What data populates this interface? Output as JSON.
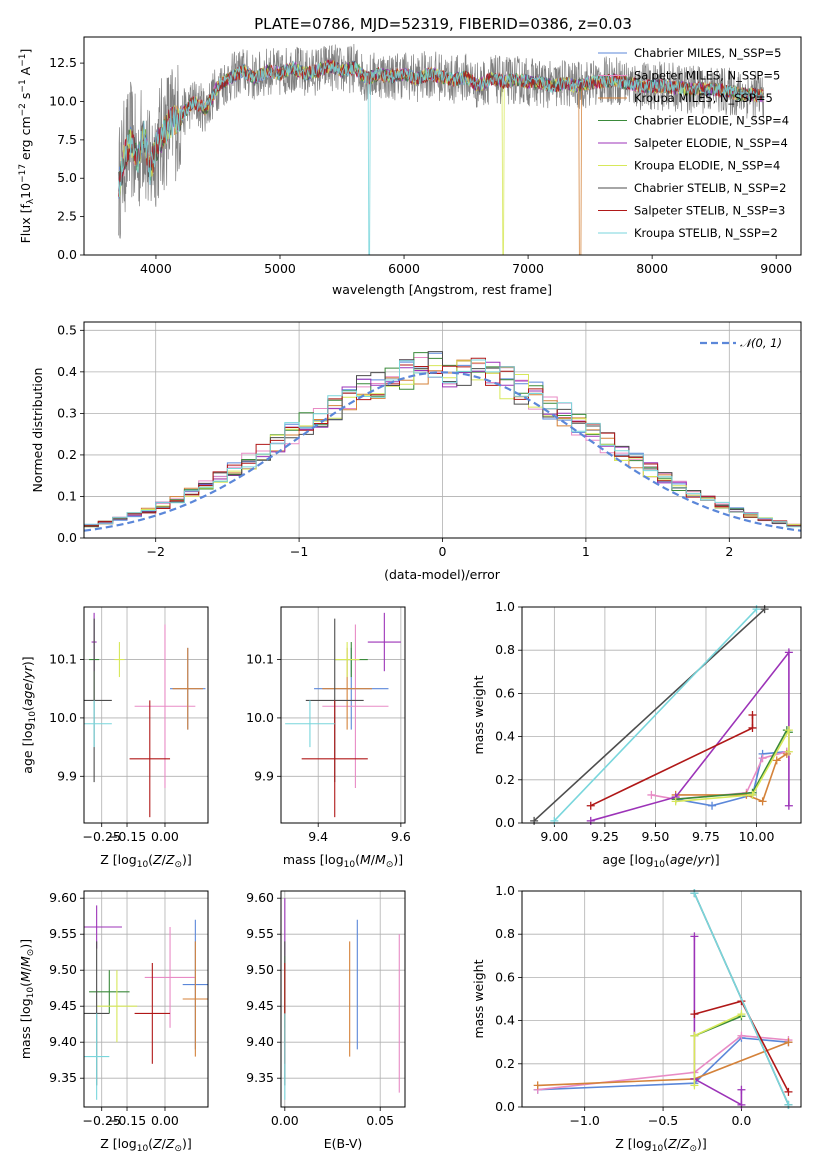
{
  "figure": {
    "title": "PLATE=0786, MJD=52319, FIBERID=0386, z=0.03"
  },
  "colors": [
    "#5b87d9",
    "#e88bc5",
    "#d4823a",
    "#3a8a3a",
    "#9c33b8",
    "#d7e85a",
    "#4d4d4d",
    "#b01818",
    "#79d6dc"
  ],
  "model_names": [
    "Chabrier MILES, N_SSP=5",
    "Salpeter MILES, N_SSP=5",
    "Kroupa MILES, N_SSP=5",
    "Chabrier ELODIE, N_SSP=4",
    "Salpeter ELODIE, N_SSP=4",
    "Kroupa ELODIE, N_SSP=4",
    "Chabrier STELIB, N_SSP=2",
    "Salpeter STELIB, N_SSP=3",
    "Kroupa STELIB, N_SSP=2"
  ],
  "chart_data": [
    {
      "id": "spectrum",
      "type": "line",
      "xlabel": "wavelength [Angstrom, rest frame]",
      "ylabel": "Flux [f_λ 10^-17 erg cm^-2 s^-1 A^-1]",
      "xlim": [
        3420,
        9200
      ],
      "ylim": [
        0,
        14.2
      ],
      "xticks": [
        4000,
        5000,
        6000,
        7000,
        8000,
        9000
      ],
      "yticks": [
        0.0,
        2.5,
        5.0,
        7.5,
        10.0,
        12.5
      ],
      "grid": false,
      "legend": "top-right",
      "observed": {
        "x": [
          3700,
          3750,
          3800,
          3850,
          3900,
          3950,
          4000,
          4100,
          4200,
          4300,
          4400,
          4500,
          4600,
          4700,
          4800,
          4900,
          5000,
          5100,
          5200,
          5300,
          5400,
          5500,
          5600,
          5700,
          5800,
          5900,
          6000,
          6100,
          6200,
          6300,
          6400,
          6500,
          6600,
          6700,
          6800,
          6900,
          7000,
          7100,
          7200,
          7300,
          7400,
          7500,
          7700,
          7900,
          8100,
          8300,
          8500,
          8700,
          8900
        ],
        "y": [
          4.5,
          6.5,
          7.5,
          6.0,
          8.0,
          5.5,
          7.0,
          8.5,
          9.0,
          10.0,
          9.5,
          11.0,
          11.5,
          12.0,
          11.5,
          12.0,
          11.8,
          12.2,
          11.8,
          12.0,
          12.3,
          12.0,
          12.2,
          11.5,
          11.8,
          11.6,
          11.8,
          11.5,
          11.8,
          11.6,
          11.4,
          11.6,
          11.0,
          11.5,
          11.3,
          11.4,
          11.3,
          11.2,
          11.0,
          11.2,
          11.0,
          11.2,
          11.4,
          11.0,
          11.0,
          10.8,
          10.8,
          10.5,
          10.4
        ]
      },
      "series": [
        {
          "name": "Chabrier MILES, N_SSP=5"
        },
        {
          "name": "Salpeter MILES, N_SSP=5"
        },
        {
          "name": "Kroupa MILES, N_SSP=5",
          "dips": [
            7420
          ]
        },
        {
          "name": "Chabrier ELODIE, N_SSP=4"
        },
        {
          "name": "Salpeter ELODIE, N_SSP=4"
        },
        {
          "name": "Kroupa ELODIE, N_SSP=4",
          "dips": [
            6800
          ]
        },
        {
          "name": "Chabrier STELIB, N_SSP=2"
        },
        {
          "name": "Salpeter STELIB, N_SSP=3"
        },
        {
          "name": "Kroupa STELIB, N_SSP=2",
          "dips": [
            5720
          ]
        }
      ]
    },
    {
      "id": "residuals",
      "type": "bar",
      "xlabel": "(data-model)/error",
      "ylabel": "Normed distribution",
      "xlim": [
        -2.5,
        2.5
      ],
      "ylim": [
        0,
        0.52
      ],
      "xticks": [
        -2,
        -1,
        0,
        1,
        2
      ],
      "xtick_labels": [
        "−2",
        "−1",
        "0",
        "1",
        "2"
      ],
      "yticks": [
        0.0,
        0.1,
        0.2,
        0.3,
        0.4,
        0.5
      ],
      "grid": true,
      "legend": "top-right",
      "gaussian_label": "𝒩(0, 1)",
      "bin_width": 0.1,
      "bin_start": -2.5
    },
    {
      "id": "age_vs_Z",
      "type": "scatter",
      "xlabel": "Z [log10(Z/Z⊙)]",
      "ylabel": "age  [log10(age/yr)]",
      "xlim": [
        -0.32,
        0.17
      ],
      "ylim": [
        9.82,
        10.19
      ],
      "xticks": [
        -0.25,
        -0.15,
        0.0
      ],
      "xtick_labels": [
        "−0.25",
        "−0.15",
        "0.00"
      ],
      "yticks": [
        9.9,
        10.0,
        10.1
      ],
      "points": [
        {
          "x": 0.09,
          "y": 10.05,
          "ex": 0.07,
          "ey": 0.07
        },
        {
          "x": 0.0,
          "y": 10.02,
          "ex": 0.12,
          "ey": 0.14
        },
        {
          "x": 0.09,
          "y": 10.05,
          "ex": 0.06,
          "ey": 0.07
        },
        {
          "x": -0.28,
          "y": 10.1,
          "ex": 0.02,
          "ey": 0.07
        },
        {
          "x": -0.28,
          "y": 10.13,
          "ex": 0.01,
          "ey": 0.05
        },
        {
          "x": -0.18,
          "y": 10.1,
          "ex": 0.02,
          "ey": 0.03
        },
        {
          "x": -0.28,
          "y": 10.03,
          "ex": 0.07,
          "ey": 0.14
        },
        {
          "x": -0.06,
          "y": 9.93,
          "ex": 0.08,
          "ey": 0.1
        },
        {
          "x": -0.28,
          "y": 9.99,
          "ex": 0.07,
          "ey": 0.04
        }
      ]
    },
    {
      "id": "age_vs_mass",
      "type": "scatter",
      "xlabel": "mass [log10(M/M⊙)]",
      "ylabel": "",
      "xlim": [
        9.31,
        9.61
      ],
      "ylim": [
        9.82,
        10.19
      ],
      "xticks": [
        9.4,
        9.6
      ],
      "yticks": [
        9.9,
        10.0,
        10.1
      ],
      "points": [
        {
          "x": 9.48,
          "y": 10.05,
          "ex": 0.09,
          "ey": 0.07
        },
        {
          "x": 9.49,
          "y": 10.02,
          "ex": 0.08,
          "ey": 0.14
        },
        {
          "x": 9.47,
          "y": 10.05,
          "ex": 0.06,
          "ey": 0.07
        },
        {
          "x": 9.48,
          "y": 10.1,
          "ex": 0.04,
          "ey": 0.03
        },
        {
          "x": 9.56,
          "y": 10.13,
          "ex": 0.04,
          "ey": 0.05
        },
        {
          "x": 9.47,
          "y": 10.1,
          "ex": 0.03,
          "ey": 0.03
        },
        {
          "x": 9.44,
          "y": 10.03,
          "ex": 0.07,
          "ey": 0.14
        },
        {
          "x": 9.44,
          "y": 9.93,
          "ex": 0.08,
          "ey": 0.1
        },
        {
          "x": 9.38,
          "y": 9.99,
          "ex": 0.06,
          "ey": 0.04
        }
      ]
    },
    {
      "id": "massweight_vs_age",
      "type": "line",
      "xlabel": "age  [log10(age/yr)]",
      "ylabel": "mass weight",
      "xlim": [
        8.84,
        10.22
      ],
      "ylim": [
        0,
        1.0
      ],
      "xticks": [
        9.0,
        9.25,
        9.5,
        9.75,
        10.0
      ],
      "xtick_labels": [
        "9.00",
        "9.25",
        "9.50",
        "9.75",
        "10.00"
      ],
      "yticks": [
        0.0,
        0.2,
        0.4,
        0.6,
        0.8,
        1.0
      ],
      "grid": true,
      "series": [
        {
          "x": [
            9.6,
            9.78,
            9.98,
            10.03,
            10.15
          ],
          "y": [
            0.11,
            0.08,
            0.13,
            0.32,
            0.33
          ]
        },
        {
          "x": [
            9.48,
            9.6,
            9.95,
            10.03,
            10.15
          ],
          "y": [
            0.13,
            0.11,
            0.14,
            0.3,
            0.33
          ]
        },
        {
          "x": [
            9.6,
            9.95,
            10.03,
            10.1,
            10.15
          ],
          "y": [
            0.13,
            0.13,
            0.1,
            0.29,
            0.32
          ]
        },
        {
          "x": [
            9.6,
            9.98,
            10.15,
            10.16
          ],
          "y": [
            0.11,
            0.14,
            0.43,
            0.42
          ]
        },
        {
          "x": [
            9.18,
            9.6,
            10.16,
            10.16
          ],
          "y": [
            0.01,
            0.12,
            0.79,
            0.08
          ]
        },
        {
          "x": [
            9.6,
            9.98,
            10.16,
            10.16
          ],
          "y": [
            0.1,
            0.13,
            0.43,
            0.33
          ]
        },
        {
          "x": [
            8.9,
            10.04
          ],
          "y": [
            0.01,
            0.99
          ]
        },
        {
          "x": [
            9.18,
            9.98,
            9.98
          ],
          "y": [
            0.08,
            0.44,
            0.5
          ]
        },
        {
          "x": [
            9.0,
            10.0
          ],
          "y": [
            0.01,
            0.99
          ]
        }
      ]
    },
    {
      "id": "mass_vs_Z",
      "type": "scatter",
      "xlabel": "Z [log10(Z/Z⊙)]",
      "ylabel": "mass [log10(M/M⊙)]",
      "xlim": [
        -0.32,
        0.17
      ],
      "ylim": [
        9.31,
        9.61
      ],
      "xticks": [
        -0.25,
        -0.15,
        0.0
      ],
      "xtick_labels": [
        "−0.25",
        "−0.15",
        "0.00"
      ],
      "yticks": [
        9.35,
        9.4,
        9.45,
        9.5,
        9.55,
        9.6
      ],
      "points": [
        {
          "x": 0.12,
          "y": 9.48,
          "ex": 0.05,
          "ey": 0.09
        },
        {
          "x": 0.02,
          "y": 9.49,
          "ex": 0.1,
          "ey": 0.07
        },
        {
          "x": 0.12,
          "y": 9.46,
          "ex": 0.05,
          "ey": 0.08
        },
        {
          "x": -0.22,
          "y": 9.47,
          "ex": 0.08,
          "ey": 0.03
        },
        {
          "x": -0.27,
          "y": 9.56,
          "ex": 0.1,
          "ey": 0.03
        },
        {
          "x": -0.19,
          "y": 9.45,
          "ex": 0.08,
          "ey": 0.05
        },
        {
          "x": -0.27,
          "y": 9.44,
          "ex": 0.05,
          "ey": 0.1
        },
        {
          "x": -0.05,
          "y": 9.44,
          "ex": 0.07,
          "ey": 0.07
        },
        {
          "x": -0.27,
          "y": 9.38,
          "ex": 0.05,
          "ey": 0.06
        }
      ]
    },
    {
      "id": "mass_vs_EBV",
      "type": "scatter",
      "xlabel": "E(B-V)",
      "ylabel": "",
      "xlim": [
        -0.002,
        0.063
      ],
      "ylim": [
        9.31,
        9.61
      ],
      "xticks": [
        0.0,
        0.05
      ],
      "xtick_labels": [
        "0.00",
        "0.05"
      ],
      "yticks": [
        9.35,
        9.4,
        9.45,
        9.5,
        9.55,
        9.6
      ],
      "points": [
        {
          "x": 0.038,
          "y": 9.48,
          "ex": 0,
          "ey": 0.09
        },
        {
          "x": 0.06,
          "y": 9.44,
          "ex": 0,
          "ey": 0.11
        },
        {
          "x": 0.034,
          "y": 9.46,
          "ex": 0,
          "ey": 0.08
        },
        {
          "x": 0.0,
          "y": 9.47,
          "ex": 0,
          "ey": 0.05
        },
        {
          "x": 0.0,
          "y": 9.56,
          "ex": 0,
          "ey": 0.04
        },
        {
          "x": 0.0,
          "y": 9.45,
          "ex": 0,
          "ey": 0.05
        },
        {
          "x": 0.0,
          "y": 9.44,
          "ex": 0,
          "ey": 0.1
        },
        {
          "x": 0.0,
          "y": 9.44,
          "ex": 0,
          "ey": 0.07
        },
        {
          "x": 0.0,
          "y": 9.38,
          "ex": 0,
          "ey": 0.06
        }
      ]
    },
    {
      "id": "massweight_vs_Z",
      "type": "line",
      "xlabel": "Z [log10(Z/Z⊙)]",
      "ylabel": "mass weight",
      "xlim": [
        -1.4,
        0.38
      ],
      "ylim": [
        0,
        1.0
      ],
      "xticks": [
        -1.0,
        -0.5,
        0.0
      ],
      "xtick_labels": [
        "−1.0",
        "−0.5",
        "0.0"
      ],
      "yticks": [
        0.0,
        0.2,
        0.4,
        0.6,
        0.8,
        1.0
      ],
      "grid": true,
      "series": [
        {
          "x": [
            -1.3,
            -0.3,
            0.0,
            0.3
          ],
          "y": [
            0.08,
            0.11,
            0.32,
            0.3
          ]
        },
        {
          "x": [
            -1.3,
            -0.3,
            0.0,
            0.3
          ],
          "y": [
            0.08,
            0.16,
            0.33,
            0.31
          ]
        },
        {
          "x": [
            -1.3,
            -0.3,
            0.3
          ],
          "y": [
            0.1,
            0.13,
            0.3
          ]
        },
        {
          "x": [
            -0.3,
            0.0
          ],
          "y": [
            0.33,
            0.42
          ]
        },
        {
          "x": [
            -0.3,
            -0.3,
            0.0,
            0.0
          ],
          "y": [
            0.79,
            0.13,
            0.01,
            0.08
          ]
        },
        {
          "x": [
            -0.3,
            -0.3,
            0.0
          ],
          "y": [
            0.1,
            0.33,
            0.43
          ]
        },
        {
          "x": [
            -0.3,
            0.3
          ],
          "y": [
            0.99,
            0.01
          ]
        },
        {
          "x": [
            -0.3,
            0.0,
            0.3
          ],
          "y": [
            0.43,
            0.49,
            0.07
          ]
        },
        {
          "x": [
            -0.3,
            0.3
          ],
          "y": [
            0.99,
            0.01
          ]
        }
      ]
    }
  ]
}
